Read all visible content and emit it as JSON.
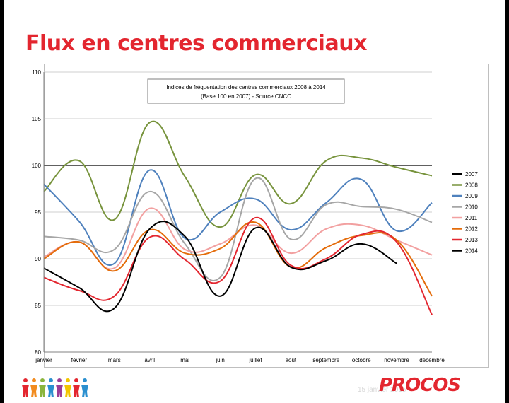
{
  "slide": {
    "title": "Flux en centres commerciaux",
    "footer_date": "15 janvier 2015",
    "logo_text": "PROCOS",
    "people_colors": [
      "#e3262f",
      "#f28b1e",
      "#8ab53c",
      "#2a8fcf",
      "#9b3d97",
      "#f2c500",
      "#e3262f",
      "#2a8fcf"
    ]
  },
  "chart_data": {
    "type": "line",
    "title_line1": "Indices de fréquentation des centres commerciaux 2008 à 2014",
    "title_line2": "(Base 100 en 2007) - Source CNCC",
    "categories": [
      "janvier",
      "février",
      "mars",
      "avril",
      "mai",
      "juin",
      "juillet",
      "août",
      "septembre",
      "octobre",
      "novembre",
      "décembre"
    ],
    "ylim": [
      80,
      110
    ],
    "yticks": [
      80,
      85,
      90,
      95,
      100,
      105,
      110
    ],
    "legend_position": "right",
    "series": [
      {
        "name": "2007",
        "color": "#000000",
        "values": [
          100,
          100,
          100,
          100,
          100,
          100,
          100,
          100,
          100,
          100,
          100,
          100
        ]
      },
      {
        "name": "2008",
        "color": "#77933c",
        "values": [
          97.2,
          100.5,
          94.2,
          104.6,
          98.8,
          93.4,
          99.0,
          95.9,
          100.5,
          100.8,
          99.8,
          98.9
        ]
      },
      {
        "name": "2009",
        "color": "#4f81bd",
        "values": [
          98.0,
          94.0,
          89.5,
          99.5,
          92.2,
          95.0,
          96.4,
          93.1,
          96.0,
          98.5,
          93.0,
          96.0
        ]
      },
      {
        "name": "2010",
        "color": "#a6a6a6",
        "values": [
          92.4,
          92.0,
          91.0,
          97.2,
          91.6,
          88.0,
          98.6,
          92.1,
          95.8,
          95.6,
          95.3,
          93.9
        ]
      },
      {
        "name": "2011",
        "color": "#f2a0a0",
        "values": [
          90.2,
          91.8,
          89.0,
          95.4,
          91.0,
          91.6,
          93.6,
          90.6,
          93.2,
          93.6,
          92.0,
          90.4
        ]
      },
      {
        "name": "2012",
        "color": "#e46c0a",
        "values": [
          90.0,
          91.8,
          88.7,
          93.1,
          90.6,
          91.1,
          93.9,
          89.1,
          91.2,
          92.5,
          92.0,
          86.0
        ]
      },
      {
        "name": "2013",
        "color": "#e3262f",
        "values": [
          88.0,
          86.6,
          86.0,
          92.3,
          89.9,
          87.6,
          94.4,
          89.3,
          90.0,
          92.6,
          91.8,
          84.0
        ]
      },
      {
        "name": "2014",
        "color": "#000000",
        "values": [
          89.0,
          86.9,
          84.7,
          93.2,
          92.4,
          86.0,
          93.3,
          89.1,
          89.8,
          91.6,
          89.5,
          null
        ]
      }
    ]
  }
}
